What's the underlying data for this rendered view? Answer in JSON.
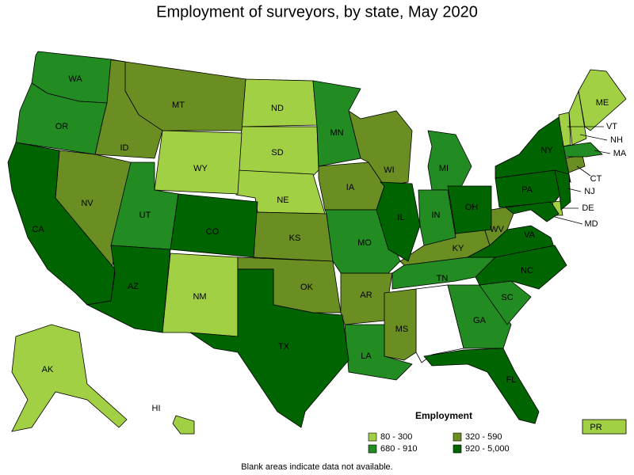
{
  "title": "Employment of surveyors, by state, May 2020",
  "note": "Blank areas indicate data not available.",
  "legend": {
    "title": "Employment",
    "items": [
      {
        "label": "80 - 300",
        "color": "#a2d045",
        "states": [
          "ND",
          "SD",
          "NE",
          "WY",
          "NM",
          "ME",
          "VT",
          "NH",
          "DE",
          "AK",
          "HI",
          "PR"
        ]
      },
      {
        "label": "320 - 590",
        "color": "#6b8e23",
        "states": [
          "MT",
          "ID",
          "NV",
          "KS",
          "OK",
          "IA",
          "WI",
          "AR",
          "MS",
          "KY",
          "WV",
          "CT"
        ]
      },
      {
        "label": "680 - 910",
        "color": "#228b22",
        "states": [
          "WA",
          "OR",
          "UT",
          "MN",
          "MO",
          "MI",
          "IN",
          "TN",
          "GA",
          "SC",
          "LA",
          "MA"
        ]
      },
      {
        "label": "920 - 5,000",
        "color": "#006400",
        "states": [
          "CA",
          "AZ",
          "CO",
          "TX",
          "IL",
          "OH",
          "PA",
          "NY",
          "NJ",
          "VA",
          "NC",
          "FL",
          "MD"
        ]
      }
    ]
  }
}
